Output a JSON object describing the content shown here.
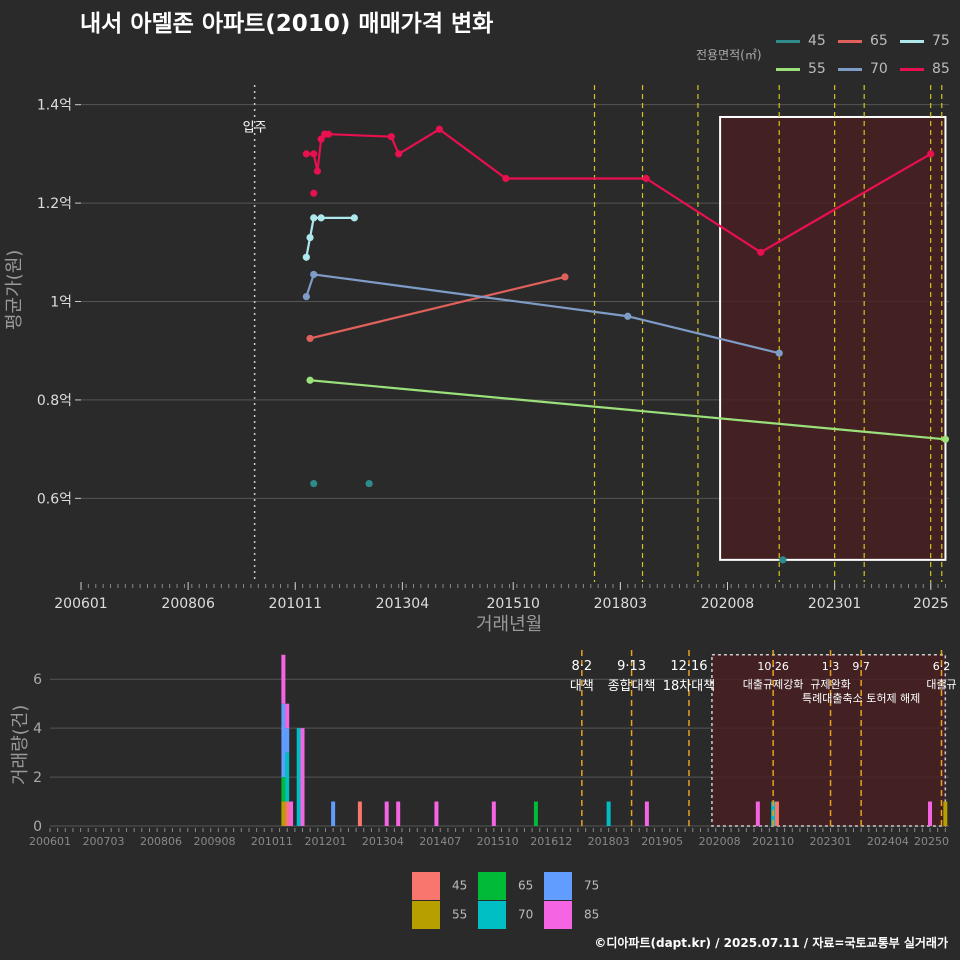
{
  "title": "내서 아델존 아파트(2010) 매매가격 변화",
  "footer": "©디아파트(dapt.kr) / 2025.07.11 / 자료=국토교통부 실거래가",
  "colors": {
    "background": "#2a2a2b",
    "grid": "#555555",
    "event_line": "#d4c41c",
    "event_line_bottom": "#e8a020",
    "highlight_fill": "#4a1f22",
    "highlight_border": "#ffffff",
    "move_in_line": "#cccccc"
  },
  "chart_data": [
    {
      "type": "line",
      "title": "내서 아델존 아파트(2010) 매매가격 변화",
      "xlabel": "거래년월",
      "ylabel": "평균가(원)",
      "x_ticks": [
        "200601",
        "200806",
        "201011",
        "201304",
        "201510",
        "201803",
        "202008",
        "202301",
        "2025"
      ],
      "y_ticks": [
        "0.6억",
        "0.8억",
        "1억",
        "1.2억",
        "1.4억"
      ],
      "y_tick_values": [
        0.6,
        0.8,
        1.0,
        1.2,
        1.4
      ],
      "xlim": [
        "2006-01",
        "2025-07"
      ],
      "ylim": [
        0.43,
        1.44
      ],
      "legend_title": "전용면적(㎡)",
      "legend_position": "top-right",
      "annotation_move_in": {
        "x": "2009-12",
        "label": "입주"
      },
      "event_lines": [
        "2017-08",
        "2018-09",
        "2019-12",
        "2021-10",
        "2023-01",
        "2023-09",
        "2025-03",
        "2025-06"
      ],
      "highlight_range": {
        "x": [
          "2020-06",
          "2025-07"
        ],
        "y": [
          0.475,
          1.375
        ]
      },
      "series": [
        {
          "name": "45",
          "color": "#2e8b89",
          "line": false,
          "points": [
            [
              "2011-04",
              0.63
            ],
            [
              "2012-07",
              0.63
            ],
            [
              "2021-11",
              0.475
            ]
          ]
        },
        {
          "name": "55",
          "color": "#9be07a",
          "line": true,
          "points": [
            [
              "2011-03",
              0.84
            ],
            [
              "2025-07",
              0.72
            ]
          ]
        },
        {
          "name": "65",
          "color": "#e0605a",
          "line": true,
          "points": [
            [
              "2011-03",
              0.925
            ],
            [
              "2016-12",
              1.05
            ]
          ]
        },
        {
          "name": "70",
          "color": "#7f9cc6",
          "line": true,
          "points": [
            [
              "2011-02",
              1.01
            ],
            [
              "2011-04",
              1.055
            ],
            [
              "2018-05",
              0.97
            ],
            [
              "2021-10",
              0.895
            ]
          ]
        },
        {
          "name": "75",
          "color": "#aee8ec",
          "line": true,
          "points": [
            [
              "2011-02",
              1.09
            ],
            [
              "2011-03",
              1.13
            ],
            [
              "2011-04",
              1.17
            ],
            [
              "2011-06",
              1.17
            ],
            [
              "2012-03",
              1.17
            ]
          ]
        },
        {
          "name": "85",
          "color": "#e8104e",
          "line": true,
          "points": [
            [
              "2011-02",
              1.3
            ],
            [
              "2011-04",
              1.3
            ],
            [
              "2011-05",
              1.265
            ],
            [
              "2011-06",
              1.33
            ],
            [
              "2011-07",
              1.34
            ],
            [
              "2011-08",
              1.34
            ],
            [
              "2013-01",
              1.335
            ],
            [
              "2013-03",
              1.3
            ],
            [
              "2014-02",
              1.35
            ],
            [
              "2015-08",
              1.25
            ],
            [
              "2018-10",
              1.25
            ],
            [
              "2021-05",
              1.1
            ],
            [
              "2025-03",
              1.3
            ]
          ],
          "extra_points": [
            [
              "2011-04",
              1.22
            ],
            [
              "2011-07",
              1.34
            ]
          ]
        }
      ]
    },
    {
      "type": "bar",
      "ylabel": "거래량(건)",
      "y_ticks": [
        "0",
        "2",
        "4",
        "6"
      ],
      "y_tick_values": [
        0,
        2,
        4,
        6
      ],
      "ylim": [
        0,
        7.4
      ],
      "x_ticks": [
        "200601",
        "200703",
        "200806",
        "200908",
        "201011",
        "201201",
        "201304",
        "201407",
        "201510",
        "201612",
        "201803",
        "201905",
        "202008",
        "202110",
        "202301",
        "202404",
        "20250"
      ],
      "events": [
        {
          "x": "2017-08",
          "date": "8·2",
          "label": "대책"
        },
        {
          "x": "2018-09",
          "date": "9·13",
          "label": "종합대책"
        },
        {
          "x": "2019-12",
          "date": "12·16",
          "label": "18차대책"
        },
        {
          "x": "2021-10",
          "date": "10·26",
          "label": "대출규제강화"
        },
        {
          "x": "2023-01",
          "date": "1·3",
          "label": "규제완화"
        },
        {
          "x": "2023-09",
          "date": "9·7",
          "label": "특례대출축소 토허제 해제"
        },
        {
          "x": "2025-06",
          "date": "6·2",
          "label": "대출규"
        }
      ],
      "legend": [
        {
          "name": "45",
          "color": "#f8766d"
        },
        {
          "name": "55",
          "color": "#b79f00"
        },
        {
          "name": "65",
          "color": "#00ba38"
        },
        {
          "name": "70",
          "color": "#00bfc4"
        },
        {
          "name": "75",
          "color": "#619cff"
        },
        {
          "name": "85",
          "color": "#f564e3"
        }
      ],
      "bars": [
        {
          "x": "2011-02",
          "stack": [
            [
              "55",
              1
            ],
            [
              "65",
              1
            ],
            [
              "75",
              3
            ],
            [
              "85",
              2
            ]
          ]
        },
        {
          "x": "2011-03",
          "stack": [
            [
              "45",
              1
            ],
            [
              "70",
              2
            ],
            [
              "75",
              1
            ],
            [
              "85",
              1
            ]
          ]
        },
        {
          "x": "2011-04",
          "stack": [
            [
              "85",
              1
            ]
          ]
        },
        {
          "x": "2011-06",
          "stack": [
            [
              "70",
              4
            ]
          ]
        },
        {
          "x": "2011-07",
          "stack": [
            [
              "85",
              4
            ]
          ]
        },
        {
          "x": "2012-03",
          "stack": [
            [
              "75",
              1
            ]
          ]
        },
        {
          "x": "2012-10",
          "stack": [
            [
              "45",
              1
            ]
          ]
        },
        {
          "x": "2013-05",
          "stack": [
            [
              "85",
              1
            ]
          ]
        },
        {
          "x": "2013-08",
          "stack": [
            [
              "85",
              1
            ]
          ]
        },
        {
          "x": "2014-06",
          "stack": [
            [
              "85",
              1
            ]
          ]
        },
        {
          "x": "2015-09",
          "stack": [
            [
              "85",
              1
            ]
          ]
        },
        {
          "x": "2016-08",
          "stack": [
            [
              "65",
              1
            ]
          ]
        },
        {
          "x": "2018-03",
          "stack": [
            [
              "70",
              1
            ]
          ]
        },
        {
          "x": "2019-01",
          "stack": [
            [
              "85",
              1
            ]
          ]
        },
        {
          "x": "2021-06",
          "stack": [
            [
              "85",
              1
            ]
          ]
        },
        {
          "x": "2021-10",
          "stack": [
            [
              "70",
              1
            ]
          ]
        },
        {
          "x": "2021-11",
          "stack": [
            [
              "45",
              1
            ]
          ]
        },
        {
          "x": "2025-03",
          "stack": [
            [
              "85",
              1
            ]
          ]
        },
        {
          "x": "2025-07",
          "stack": [
            [
              "55",
              1
            ]
          ]
        }
      ]
    }
  ]
}
